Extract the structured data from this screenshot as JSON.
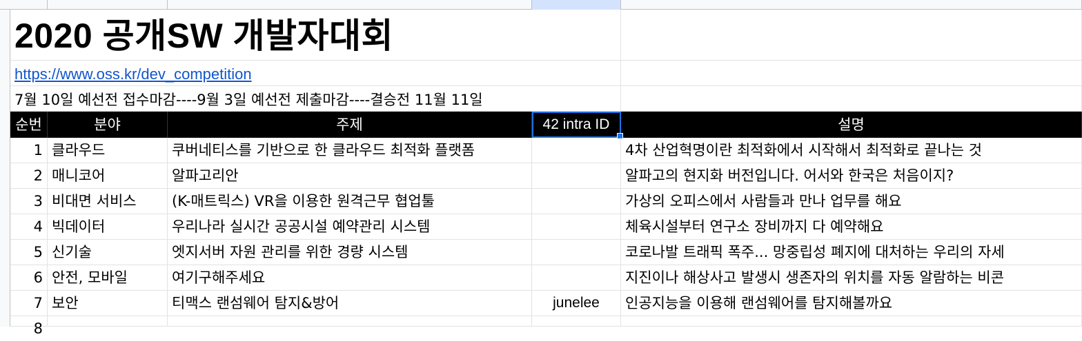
{
  "sheet": {
    "title": "2020 공개SW 개발자대회",
    "link": "https://www.oss.kr/dev_competition",
    "schedule": "7월 10일 예선전 접수마감----9월 3일 예선전 제출마감----결승전 11월 11일"
  },
  "table": {
    "headers": {
      "no": "순번",
      "field": "분야",
      "topic": "주제",
      "intra_id": "42 intra ID",
      "description": "설명"
    },
    "rows": [
      {
        "no": "1",
        "field": "클라우드",
        "topic": "쿠버네티스를 기반으로 한 클라우드 최적화 플랫폼",
        "intra_id": "",
        "description": "4차 산업혁명이란 최적화에서 시작해서 최적화로 끝나는 것"
      },
      {
        "no": "2",
        "field": "매니코어",
        "topic": "알파고리안",
        "intra_id": "",
        "description": "알파고의 현지화 버전입니다. 어서와 한국은 처음이지?"
      },
      {
        "no": "3",
        "field": "비대면 서비스",
        "topic": "(K-매트릭스) VR을 이용한 원격근무 협업툴",
        "intra_id": "",
        "description": "가상의 오피스에서 사람들과 만나 업무를 해요"
      },
      {
        "no": "4",
        "field": "빅데이터",
        "topic": "우리나라 실시간 공공시설 예약관리 시스템",
        "intra_id": "",
        "description": "체육시설부터 연구소 장비까지 다 예약해요"
      },
      {
        "no": "5",
        "field": "신기술",
        "topic": "엣지서버 자원 관리를 위한 경량 시스템",
        "intra_id": "",
        "description": "코로나발 트래픽 폭주... 망중립성 폐지에 대처하는 우리의 자세"
      },
      {
        "no": "6",
        "field": "안전, 모바일",
        "topic": "여기구해주세요",
        "intra_id": "",
        "description": "지진이나 해상사고 발생시 생존자의 위치를 자동 알람하는 비콘"
      },
      {
        "no": "7",
        "field": "보안",
        "topic": "티맥스 랜섬웨어 탐지&방어",
        "intra_id": "junelee",
        "description": "인공지능을 이용해 랜섬웨어를 탐지해볼까요"
      }
    ],
    "next_row_number": "8"
  }
}
